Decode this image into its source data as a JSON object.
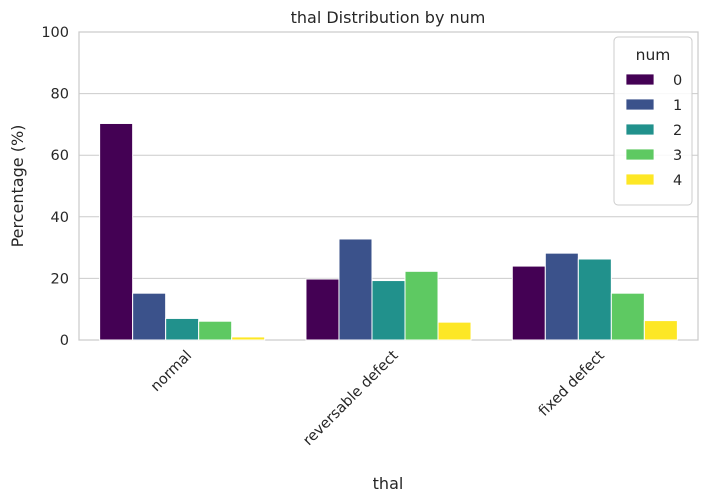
{
  "chart_data": {
    "type": "bar",
    "title": "thal Distribution by num",
    "xlabel": "thal",
    "ylabel": "Percentage (%)",
    "categories": [
      "normal",
      "reversable defect",
      "fixed defect"
    ],
    "ylim": [
      0,
      100
    ],
    "yticks": [
      "0",
      "20",
      "40",
      "60",
      "80",
      "100"
    ],
    "grid": true,
    "legend": {
      "title": "num",
      "placement": "top-right"
    },
    "series": [
      {
        "name": "0",
        "color": "#440154",
        "values": [
          70.3,
          19.8,
          24.0
        ]
      },
      {
        "name": "1",
        "color": "#3b528b",
        "values": [
          15.2,
          32.8,
          28.2
        ]
      },
      {
        "name": "2",
        "color": "#21918c",
        "values": [
          7.0,
          19.3,
          26.3
        ]
      },
      {
        "name": "3",
        "color": "#5ec962",
        "values": [
          6.1,
          22.3,
          15.2
        ]
      },
      {
        "name": "4",
        "color": "#fde725",
        "values": [
          1.0,
          5.8,
          6.3
        ]
      }
    ]
  }
}
